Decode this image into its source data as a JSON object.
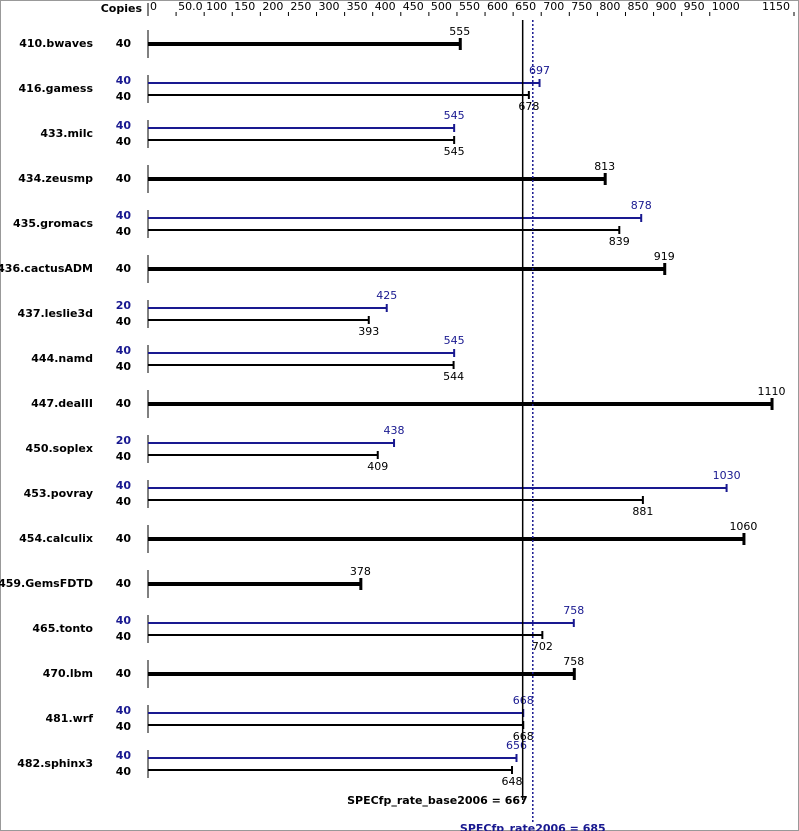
{
  "chart_data": {
    "type": "bar",
    "orientation": "horizontal",
    "copies_label": "Copies",
    "categories": [
      "410.bwaves",
      "416.gamess",
      "433.milc",
      "434.zeusmp",
      "435.gromacs",
      "436.cactusADM",
      "437.leslie3d",
      "444.namd",
      "447.dealII",
      "450.soplex",
      "453.povray",
      "454.calculix",
      "459.GemsFDTD",
      "465.tonto",
      "470.lbm",
      "481.wrf",
      "482.sphinx3"
    ],
    "series": [
      {
        "color": "#000000",
        "copies": [
          40,
          40,
          40,
          40,
          40,
          40,
          40,
          40,
          40,
          40,
          40,
          40,
          40,
          40,
          40,
          40,
          40
        ],
        "values": [
          555,
          678,
          545,
          813,
          839,
          919,
          393,
          544,
          1110,
          409,
          881,
          1060,
          378,
          702,
          758,
          668,
          648
        ]
      },
      {
        "color": "#191990",
        "copies": [
          null,
          40,
          40,
          null,
          40,
          null,
          20,
          40,
          null,
          20,
          40,
          null,
          null,
          40,
          null,
          40,
          40
        ],
        "values": [
          null,
          697,
          545,
          null,
          878,
          null,
          425,
          545,
          null,
          438,
          1030,
          null,
          null,
          758,
          null,
          668,
          656
        ]
      }
    ],
    "xlim": [
      0,
      1150
    ],
    "xticks": [
      0,
      {
        "value": 50,
        "label": "50.0"
      },
      100,
      150,
      200,
      250,
      300,
      350,
      400,
      450,
      500,
      550,
      600,
      650,
      700,
      750,
      800,
      850,
      900,
      950,
      1000,
      1150
    ],
    "reference_lines": [
      {
        "label": "SPECfp_rate_base2006 = 667",
        "value": 667,
        "color": "#000000",
        "style": "solid"
      },
      {
        "label": "SPECfp_rate2006 = 685",
        "value": 685,
        "color": "#191990",
        "style": "dotted"
      }
    ]
  }
}
